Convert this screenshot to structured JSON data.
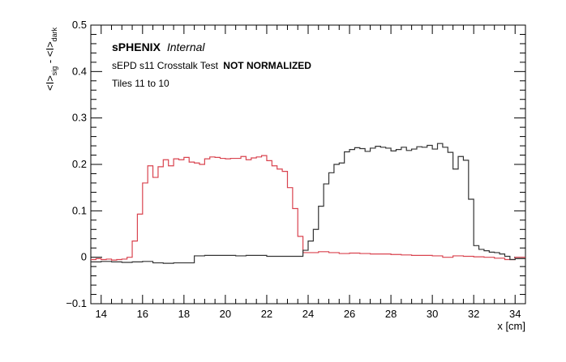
{
  "chart_data": {
    "type": "line",
    "step": true,
    "title": "",
    "xlabel": "x [cm]",
    "ylabel": {
      "main1": "<I>",
      "sub1": "sig",
      "minus": " - ",
      "main2": "<I>",
      "sub2": "dark"
    },
    "xlim": [
      13.5,
      34.5
    ],
    "ylim": [
      -0.1,
      0.5
    ],
    "xticks": [
      14,
      16,
      18,
      20,
      22,
      24,
      26,
      28,
      30,
      32,
      34
    ],
    "yticks": [
      -0.1,
      0,
      0.1,
      0.2,
      0.3,
      0.4,
      0.5
    ],
    "ytick_labels": [
      "−0.1",
      "0",
      "0.1",
      "0.2",
      "0.3",
      "0.4",
      "0.5"
    ],
    "xtick_labels": [
      "14",
      "16",
      "18",
      "20",
      "22",
      "24",
      "26",
      "28",
      "30",
      "32",
      "34"
    ],
    "grid": false,
    "annotations": {
      "line1_bold": "sPHENIX",
      "line1_italic": "Internal",
      "line2_plain": "sEPD s11 Crosstalk Test",
      "line2_bold": "NOT NORMALIZED",
      "line3": "Tiles 11 to 10"
    },
    "series": [
      {
        "color": "#d9434f",
        "x": [
          13.5,
          13.75,
          14.0,
          14.25,
          14.5,
          14.75,
          15.0,
          15.25,
          15.5,
          15.75,
          16.0,
          16.25,
          16.5,
          16.75,
          17.0,
          17.25,
          17.5,
          17.75,
          18.0,
          18.25,
          18.5,
          18.75,
          19.0,
          19.25,
          19.5,
          19.75,
          20.0,
          20.25,
          20.5,
          20.75,
          21.0,
          21.25,
          21.5,
          21.75,
          22.0,
          22.25,
          22.5,
          22.75,
          23.0,
          23.25,
          23.5,
          23.75,
          24.0,
          24.5,
          25.0,
          25.5,
          26.0,
          26.5,
          27.0,
          27.5,
          28.0,
          28.5,
          29.0,
          29.5,
          30.0,
          30.5,
          31.0,
          31.5,
          32.0,
          32.5,
          33.0,
          33.5,
          34.0
        ],
        "y": [
          -0.005,
          -0.003,
          -0.005,
          -0.004,
          -0.006,
          -0.005,
          -0.004,
          0.0,
          0.035,
          0.093,
          0.16,
          0.197,
          0.172,
          0.195,
          0.21,
          0.197,
          0.212,
          0.21,
          0.215,
          0.205,
          0.203,
          0.2,
          0.212,
          0.216,
          0.215,
          0.213,
          0.212,
          0.213,
          0.213,
          0.217,
          0.21,
          0.214,
          0.216,
          0.219,
          0.208,
          0.197,
          0.19,
          0.185,
          0.15,
          0.105,
          0.045,
          0.01,
          0.01,
          0.012,
          0.01,
          0.008,
          0.009,
          0.008,
          0.007,
          0.007,
          0.006,
          0.005,
          0.004,
          0.004,
          0.003,
          0.0,
          0.003,
          0.002,
          0.001,
          0.0,
          -0.002,
          -0.005,
          0.0
        ]
      },
      {
        "color": "#333333",
        "x": [
          13.5,
          14.0,
          14.5,
          15.0,
          15.5,
          16.0,
          16.5,
          17.0,
          17.5,
          18.0,
          18.5,
          19.0,
          19.5,
          20.0,
          20.5,
          21.0,
          21.5,
          22.0,
          22.5,
          23.0,
          23.5,
          23.75,
          24.0,
          24.25,
          24.5,
          24.75,
          25.0,
          25.25,
          25.5,
          25.75,
          26.0,
          26.25,
          26.5,
          26.75,
          27.0,
          27.25,
          27.5,
          27.75,
          28.0,
          28.25,
          28.5,
          28.75,
          29.0,
          29.25,
          29.5,
          29.75,
          30.0,
          30.25,
          30.5,
          30.75,
          31.0,
          31.25,
          31.5,
          31.75,
          32.0,
          32.25,
          32.5,
          32.75,
          33.0,
          33.25,
          33.5,
          33.75,
          34.0
        ],
        "y": [
          -0.01,
          -0.009,
          -0.01,
          -0.011,
          -0.01,
          -0.009,
          -0.012,
          -0.013,
          -0.012,
          -0.012,
          0.003,
          0.004,
          0.004,
          0.004,
          0.003,
          0.004,
          0.004,
          0.002,
          0.002,
          0.002,
          0.002,
          0.015,
          0.035,
          0.06,
          0.11,
          0.158,
          0.182,
          0.2,
          0.203,
          0.227,
          0.232,
          0.236,
          0.234,
          0.228,
          0.235,
          0.239,
          0.237,
          0.235,
          0.229,
          0.232,
          0.237,
          0.23,
          0.233,
          0.238,
          0.237,
          0.241,
          0.233,
          0.245,
          0.237,
          0.226,
          0.19,
          0.217,
          0.209,
          0.125,
          0.025,
          0.017,
          0.014,
          0.011,
          0.01,
          0.007,
          0.002,
          -0.005,
          -0.003
        ]
      }
    ]
  }
}
